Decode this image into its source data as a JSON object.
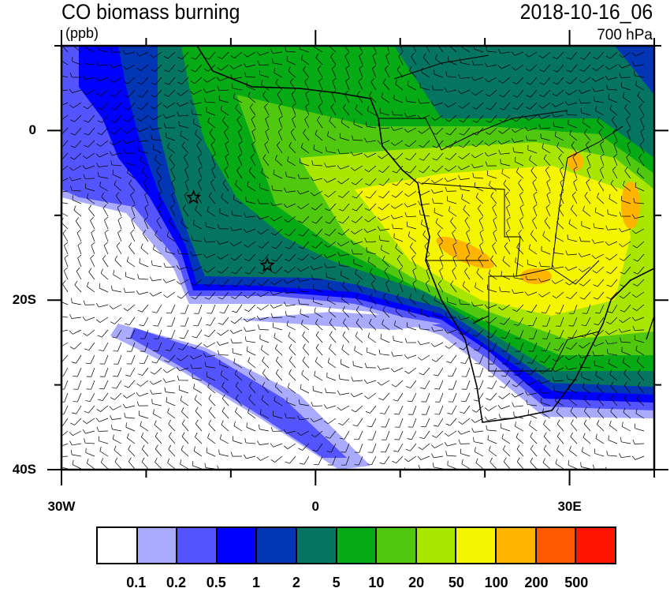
{
  "title": "CO biomass burning",
  "units": "(ppb)",
  "datetime": "2018-10-16_06",
  "level": "700 hPa",
  "axes": {
    "x_ticks": [
      {
        "lon": -30,
        "label": "30W"
      },
      {
        "lon": 0,
        "label": "0"
      },
      {
        "lon": 30,
        "label": "30E"
      }
    ],
    "y_ticks": [
      {
        "lat": 0,
        "label": "0"
      },
      {
        "lat": -20,
        "label": "20S"
      },
      {
        "lat": -40,
        "label": "40S"
      }
    ],
    "lon_range": [
      -30,
      40
    ],
    "lat_range": [
      -40,
      10
    ]
  },
  "colorbar": {
    "colors": [
      "#ffffff",
      "#aaaaff",
      "#5555ff",
      "#0000ff",
      "#0336b4",
      "#057562",
      "#05aa15",
      "#50c810",
      "#a8e600",
      "#f5f500",
      "#ffb400",
      "#ff5a00",
      "#ff1400"
    ],
    "labels": [
      "0.1",
      "0.2",
      "0.5",
      "1",
      "2",
      "5",
      "10",
      "20",
      "50",
      "100",
      "200",
      "500"
    ]
  },
  "markers": [
    {
      "symbol": "star",
      "lon": -14.4,
      "lat": -7.9
    },
    {
      "symbol": "star",
      "lon": -5.7,
      "lat": -15.9
    }
  ],
  "overlays": [
    "wind-barbs",
    "coastlines",
    "country-borders"
  ]
}
